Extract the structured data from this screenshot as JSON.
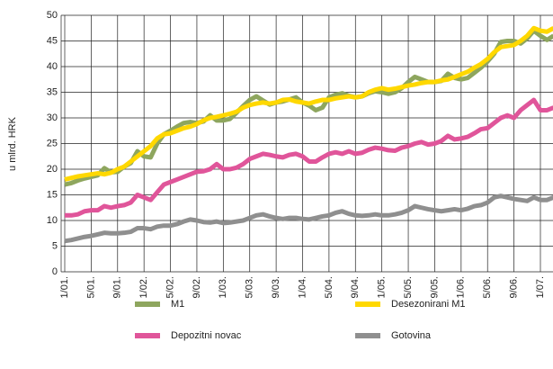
{
  "chart_data": {
    "type": "line",
    "y_label": "u mlrd. HRK",
    "categories": [
      "1/01.",
      null,
      null,
      null,
      "5/01.",
      null,
      null,
      null,
      "9/01.",
      null,
      null,
      null,
      "1/02.",
      null,
      null,
      null,
      "5/02.",
      null,
      null,
      null,
      "9/02.",
      null,
      null,
      null,
      "1/03.",
      null,
      null,
      null,
      "5/03.",
      null,
      null,
      null,
      "9/03.",
      null,
      null,
      null,
      "1/04.",
      null,
      null,
      null,
      "5/04.",
      null,
      null,
      null,
      "9/04.",
      null,
      null,
      null,
      "1/05.",
      null,
      null,
      null,
      "5/05.",
      null,
      null,
      null,
      "9/05.",
      null,
      null,
      null,
      "1/06.",
      null,
      null,
      null,
      "5/06.",
      null,
      null,
      null,
      "9/06.",
      null,
      null,
      null,
      "1/07.",
      null,
      null
    ],
    "ylim": [
      0,
      50
    ],
    "yticks": [
      0,
      5,
      10,
      15,
      20,
      25,
      30,
      35,
      40,
      45,
      50
    ],
    "grid": true,
    "series": [
      {
        "name": "M1",
        "color": "#8ea65e",
        "values": [
          17,
          17.3,
          17.8,
          18.2,
          18.5,
          18.8,
          20.2,
          19.4,
          19.5,
          20.5,
          21.2,
          23.5,
          22.5,
          22.3,
          25,
          26.8,
          27.5,
          28.3,
          29,
          29.2,
          29,
          29.3,
          30.5,
          29.5,
          29.5,
          29.8,
          31,
          32.3,
          33.5,
          34.2,
          33.4,
          32.6,
          33,
          33.2,
          33.6,
          34,
          33,
          32.4,
          31.5,
          32,
          34,
          34.5,
          34.8,
          34.3,
          34,
          34.2,
          34.8,
          35.2,
          35,
          34.7,
          35,
          35.8,
          37,
          38,
          37.5,
          37,
          37,
          37.2,
          38.6,
          37.8,
          37.5,
          37.8,
          38.8,
          39.8,
          41,
          42.5,
          44.8,
          45,
          45,
          44.5,
          45.5,
          47,
          46,
          45.2,
          46
        ]
      },
      {
        "name": "Desezonirani M1",
        "color": "#ffd800",
        "values": [
          18,
          18.3,
          18.6,
          18.8,
          19,
          19.2,
          19,
          19.3,
          20,
          20.5,
          21.5,
          22.5,
          23.5,
          24.5,
          26,
          26.8,
          27,
          27.5,
          28,
          28.3,
          28.8,
          29.5,
          30,
          30.2,
          30.5,
          30.8,
          31.2,
          32,
          32.5,
          32.8,
          33,
          32.8,
          33,
          33.5,
          33.6,
          33.2,
          33,
          32.8,
          33.2,
          33.5,
          33.5,
          33.8,
          34,
          34.2,
          34,
          34.2,
          35,
          35.5,
          35.8,
          35.5,
          35.7,
          36,
          36.3,
          36.5,
          36.8,
          37,
          37,
          37.3,
          37.5,
          38,
          38.5,
          39,
          39.8,
          40.5,
          41.5,
          42.8,
          43.8,
          44,
          44.2,
          45,
          46,
          47.5,
          47,
          46.8,
          47.5
        ]
      },
      {
        "name": "Depozitni novac",
        "color": "#e0559a",
        "values": [
          11,
          11,
          11.2,
          11.8,
          12,
          12,
          12.8,
          12.5,
          12.8,
          13,
          13.5,
          15,
          14.5,
          14,
          15.5,
          17,
          17.5,
          18,
          18.5,
          19,
          19.5,
          19.6,
          20,
          21,
          20,
          20,
          20.3,
          21,
          22,
          22.5,
          23,
          22.8,
          22.5,
          22.3,
          22.8,
          23,
          22.5,
          21.5,
          21.5,
          22.3,
          23,
          23.3,
          23,
          23.5,
          23,
          23.2,
          23.8,
          24.2,
          24,
          23.7,
          23.6,
          24.2,
          24.5,
          25,
          25.3,
          24.8,
          25,
          25.5,
          26.5,
          25.8,
          26,
          26.3,
          27,
          27.8,
          28,
          29,
          30,
          30.5,
          30,
          31.5,
          32.5,
          33.5,
          31.5,
          31.5,
          32
        ]
      },
      {
        "name": "Gotovina",
        "color": "#8f8f8f",
        "values": [
          6,
          6.2,
          6.5,
          6.8,
          7,
          7.3,
          7.6,
          7.5,
          7.5,
          7.6,
          7.8,
          8.5,
          8.5,
          8.3,
          8.8,
          9,
          9,
          9.3,
          9.8,
          10.2,
          10,
          9.7,
          9.6,
          9.8,
          9.5,
          9.6,
          9.8,
          10,
          10.5,
          11,
          11.2,
          10.8,
          10.5,
          10.3,
          10.5,
          10.5,
          10.3,
          10.2,
          10.5,
          10.8,
          11,
          11.5,
          11.8,
          11.3,
          11,
          10.9,
          11,
          11.2,
          11,
          11,
          11.2,
          11.5,
          12,
          12.8,
          12.5,
          12.2,
          12,
          11.8,
          12,
          12.2,
          12,
          12.3,
          12.8,
          13,
          13.5,
          14.5,
          14.8,
          14.5,
          14.2,
          14,
          13.8,
          14.5,
          14,
          14,
          14.5
        ]
      }
    ]
  }
}
